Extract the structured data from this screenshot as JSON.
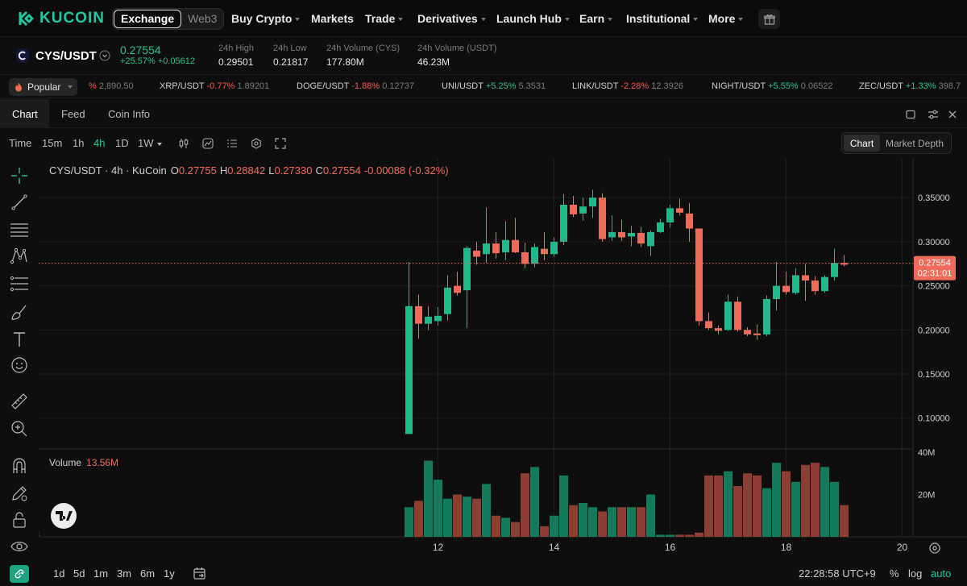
{
  "nav": {
    "logo_text": "KUCOIN",
    "exchange_label": "Exchange",
    "web3_label": "Web3",
    "items": [
      {
        "label": "Buy Crypto",
        "dropdown": true
      },
      {
        "label": "Markets",
        "dropdown": false
      },
      {
        "label": "Trade",
        "dropdown": true
      },
      {
        "label": "Derivatives",
        "dropdown": true
      },
      {
        "label": "Launch Hub",
        "dropdown": true
      },
      {
        "label": "Earn",
        "dropdown": true
      },
      {
        "label": "Institutional",
        "dropdown": true
      },
      {
        "label": "More",
        "dropdown": true
      }
    ],
    "icons": [
      "kucoin-logo-icon",
      "gift-icon"
    ]
  },
  "ticker": {
    "pair": "CYS/USDT",
    "price": "0.27554",
    "change_pct": "+25.57%",
    "change_abs": "+0.05612",
    "high_label": "24h High",
    "high": "0.29501",
    "low_label": "24h Low",
    "low": "0.21817",
    "vol_base_label": "24h Volume (CYS)",
    "vol_base": "177.80M",
    "vol_quote_label": "24h Volume (USDT)",
    "vol_quote": "46.23M"
  },
  "strip": {
    "popular_label": "Popular",
    "items": [
      {
        "symbol": "",
        "change": "%",
        "price": "2,890.50",
        "dir": "down"
      },
      {
        "symbol": "XRP/USDT",
        "change": "-0.77%",
        "price": "1.89201",
        "dir": "down"
      },
      {
        "symbol": "DOGE/USDT",
        "change": "-1.88%",
        "price": "0.12737",
        "dir": "down"
      },
      {
        "symbol": "UNI/USDT",
        "change": "+5.25%",
        "price": "5.3531",
        "dir": "up"
      },
      {
        "symbol": "LINK/USDT",
        "change": "-2.28%",
        "price": "12.3926",
        "dir": "down"
      },
      {
        "symbol": "NIGHT/USDT",
        "change": "+5.55%",
        "price": "0.06522",
        "dir": "up"
      },
      {
        "symbol": "ZEC/USDT",
        "change": "+1.33%",
        "price": "398.7",
        "dir": "up"
      }
    ]
  },
  "tabs": [
    "Chart",
    "Feed",
    "Coin Info"
  ],
  "timeframes": {
    "time_label": "Time",
    "items": [
      "15m",
      "1h",
      "4h",
      "1D",
      "1W"
    ],
    "active": "4h"
  },
  "view_toggle": [
    "Chart",
    "Market Depth"
  ],
  "legend": {
    "title": "CYS/USDT · 4h · KuCoin",
    "o_label": "O",
    "o": "0.27755",
    "h_label": "H",
    "h": "0.28842",
    "l_label": "L",
    "l": "0.27330",
    "c_label": "C",
    "c": "0.27554",
    "change": "-0.00088 (-0.32%)"
  },
  "volume_legend": {
    "label": "Volume",
    "value": "13.56M"
  },
  "price_tag": {
    "price": "0.27554",
    "countdown": "02:31:01"
  },
  "bottom": {
    "ranges": [
      "1d",
      "5d",
      "1m",
      "3m",
      "6m",
      "1y"
    ],
    "clock": "22:28:58 UTC+9",
    "pct": "%",
    "log": "log",
    "auto": "auto"
  },
  "colors": {
    "up": "#1fb98b",
    "down": "#f06b5a",
    "accent": "#1fc7a0",
    "bg": "#0e0e0e"
  },
  "chart_data": {
    "type": "candlestick",
    "interval": "4h",
    "y_ticks": [
      0.1,
      0.15,
      0.2,
      0.25,
      0.3,
      0.35
    ],
    "y_tick_labels": [
      "0.10000",
      "0.15000",
      "0.20000",
      "0.25000",
      "0.30000",
      "0.35000"
    ],
    "ylim": [
      0.065,
      0.395
    ],
    "x_ticks": [
      {
        "label": "12",
        "index": 3
      },
      {
        "label": "14",
        "index": 15
      },
      {
        "label": "16",
        "index": 27
      },
      {
        "label": "18",
        "index": 39
      },
      {
        "label": "20",
        "index": 51
      }
    ],
    "volume_ticks": [
      {
        "value": 20,
        "label": "20M"
      },
      {
        "value": 40,
        "label": "40M"
      }
    ],
    "volume_ylim": [
      0,
      40
    ],
    "candles": [
      {
        "o": 0.082,
        "h": 0.277,
        "l": 0.082,
        "c": 0.227,
        "v": 14
      },
      {
        "o": 0.227,
        "h": 0.24,
        "l": 0.19,
        "c": 0.207,
        "v": 17
      },
      {
        "o": 0.207,
        "h": 0.227,
        "l": 0.2,
        "c": 0.215,
        "v": 36
      },
      {
        "o": 0.21,
        "h": 0.226,
        "l": 0.205,
        "c": 0.216,
        "v": 27
      },
      {
        "o": 0.218,
        "h": 0.262,
        "l": 0.211,
        "c": 0.248,
        "v": 18
      },
      {
        "o": 0.25,
        "h": 0.266,
        "l": 0.239,
        "c": 0.242,
        "v": 20
      },
      {
        "o": 0.245,
        "h": 0.295,
        "l": 0.202,
        "c": 0.293,
        "v": 19
      },
      {
        "o": 0.29,
        "h": 0.3,
        "l": 0.274,
        "c": 0.283,
        "v": 18
      },
      {
        "o": 0.286,
        "h": 0.339,
        "l": 0.276,
        "c": 0.298,
        "v": 25
      },
      {
        "o": 0.298,
        "h": 0.311,
        "l": 0.281,
        "c": 0.287,
        "v": 10
      },
      {
        "o": 0.288,
        "h": 0.323,
        "l": 0.279,
        "c": 0.302,
        "v": 9
      },
      {
        "o": 0.302,
        "h": 0.327,
        "l": 0.287,
        "c": 0.288,
        "v": 7
      },
      {
        "o": 0.288,
        "h": 0.299,
        "l": 0.27,
        "c": 0.275,
        "v": 30
      },
      {
        "o": 0.275,
        "h": 0.298,
        "l": 0.271,
        "c": 0.294,
        "v": 33
      },
      {
        "o": 0.292,
        "h": 0.311,
        "l": 0.279,
        "c": 0.286,
        "v": 5
      },
      {
        "o": 0.286,
        "h": 0.305,
        "l": 0.283,
        "c": 0.3,
        "v": 10
      },
      {
        "o": 0.3,
        "h": 0.354,
        "l": 0.296,
        "c": 0.342,
        "v": 29
      },
      {
        "o": 0.342,
        "h": 0.352,
        "l": 0.328,
        "c": 0.331,
        "v": 15
      },
      {
        "o": 0.332,
        "h": 0.35,
        "l": 0.324,
        "c": 0.34,
        "v": 16
      },
      {
        "o": 0.34,
        "h": 0.359,
        "l": 0.327,
        "c": 0.35,
        "v": 14
      },
      {
        "o": 0.35,
        "h": 0.355,
        "l": 0.3,
        "c": 0.303,
        "v": 12
      },
      {
        "o": 0.305,
        "h": 0.33,
        "l": 0.301,
        "c": 0.311,
        "v": 14
      },
      {
        "o": 0.311,
        "h": 0.325,
        "l": 0.301,
        "c": 0.305,
        "v": 14
      },
      {
        "o": 0.306,
        "h": 0.318,
        "l": 0.295,
        "c": 0.31,
        "v": 14
      },
      {
        "o": 0.31,
        "h": 0.317,
        "l": 0.294,
        "c": 0.298,
        "v": 14
      },
      {
        "o": 0.295,
        "h": 0.313,
        "l": 0.284,
        "c": 0.311,
        "v": 20
      },
      {
        "o": 0.311,
        "h": 0.326,
        "l": 0.31,
        "c": 0.322,
        "v": 1
      },
      {
        "o": 0.322,
        "h": 0.342,
        "l": 0.316,
        "c": 0.338,
        "v": 1
      },
      {
        "o": 0.338,
        "h": 0.349,
        "l": 0.33,
        "c": 0.333,
        "v": 1
      },
      {
        "o": 0.332,
        "h": 0.344,
        "l": 0.3,
        "c": 0.315,
        "v": 1
      },
      {
        "o": 0.315,
        "h": 0.315,
        "l": 0.205,
        "c": 0.21,
        "v": 2
      },
      {
        "o": 0.21,
        "h": 0.22,
        "l": 0.2,
        "c": 0.202,
        "v": 29
      },
      {
        "o": 0.202,
        "h": 0.205,
        "l": 0.195,
        "c": 0.199,
        "v": 29
      },
      {
        "o": 0.2,
        "h": 0.24,
        "l": 0.199,
        "c": 0.232,
        "v": 31
      },
      {
        "o": 0.232,
        "h": 0.238,
        "l": 0.198,
        "c": 0.2,
        "v": 24
      },
      {
        "o": 0.2,
        "h": 0.203,
        "l": 0.193,
        "c": 0.195,
        "v": 30
      },
      {
        "o": 0.196,
        "h": 0.206,
        "l": 0.189,
        "c": 0.194,
        "v": 29
      },
      {
        "o": 0.195,
        "h": 0.239,
        "l": 0.193,
        "c": 0.235,
        "v": 23
      },
      {
        "o": 0.235,
        "h": 0.277,
        "l": 0.222,
        "c": 0.25,
        "v": 35
      },
      {
        "o": 0.25,
        "h": 0.266,
        "l": 0.24,
        "c": 0.243,
        "v": 31
      },
      {
        "o": 0.242,
        "h": 0.27,
        "l": 0.24,
        "c": 0.262,
        "v": 26
      },
      {
        "o": 0.262,
        "h": 0.275,
        "l": 0.233,
        "c": 0.256,
        "v": 34
      },
      {
        "o": 0.256,
        "h": 0.261,
        "l": 0.24,
        "c": 0.244,
        "v": 35
      },
      {
        "o": 0.244,
        "h": 0.262,
        "l": 0.242,
        "c": 0.26,
        "v": 33
      },
      {
        "o": 0.26,
        "h": 0.292,
        "l": 0.256,
        "c": 0.276,
        "v": 26
      },
      {
        "o": 0.276,
        "h": 0.285,
        "l": 0.272,
        "c": 0.274,
        "v": 15
      }
    ]
  }
}
